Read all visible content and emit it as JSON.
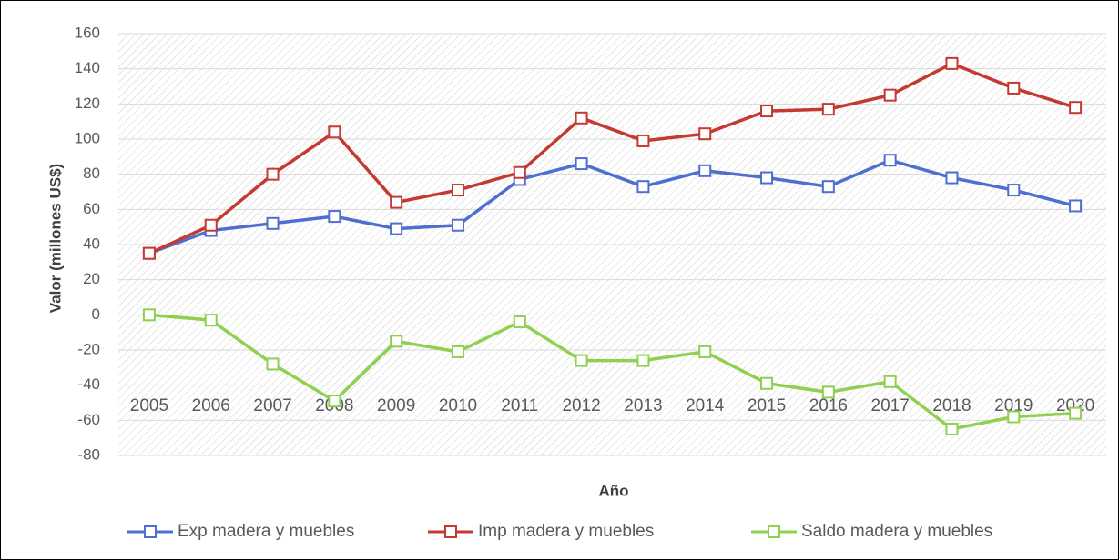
{
  "chart_data": {
    "type": "line",
    "x_label": "Año",
    "y_label": "Valor (millones US$)",
    "categories": [
      "2005",
      "2006",
      "2007",
      "2008",
      "2009",
      "2010",
      "2011",
      "2012",
      "2013",
      "2014",
      "2015",
      "2016",
      "2017",
      "2018",
      "2019",
      "2020"
    ],
    "series": [
      {
        "name": "Exp madera y muebles",
        "color": "#4f6fd0",
        "values": [
          35,
          48,
          52,
          56,
          49,
          51,
          77,
          86,
          73,
          82,
          78,
          73,
          88,
          78,
          71,
          62
        ]
      },
      {
        "name": "Imp madera y muebles",
        "color": "#c43a31",
        "values": [
          35,
          51,
          80,
          104,
          64,
          71,
          81,
          112,
          99,
          103,
          116,
          117,
          125,
          143,
          129,
          118
        ]
      },
      {
        "name": "Saldo madera y muebles",
        "color": "#8ed04f",
        "values": [
          0,
          -3,
          -28,
          -49,
          -15,
          -21,
          -4,
          -26,
          -26,
          -21,
          -39,
          -44,
          -38,
          -65,
          -58,
          -56
        ]
      }
    ],
    "ylim": [
      -80,
      160
    ],
    "yticks": [
      -80,
      -60,
      -40,
      -20,
      0,
      20,
      40,
      60,
      80,
      100,
      120,
      140,
      160
    ],
    "grid": true,
    "legend": "bottom"
  }
}
